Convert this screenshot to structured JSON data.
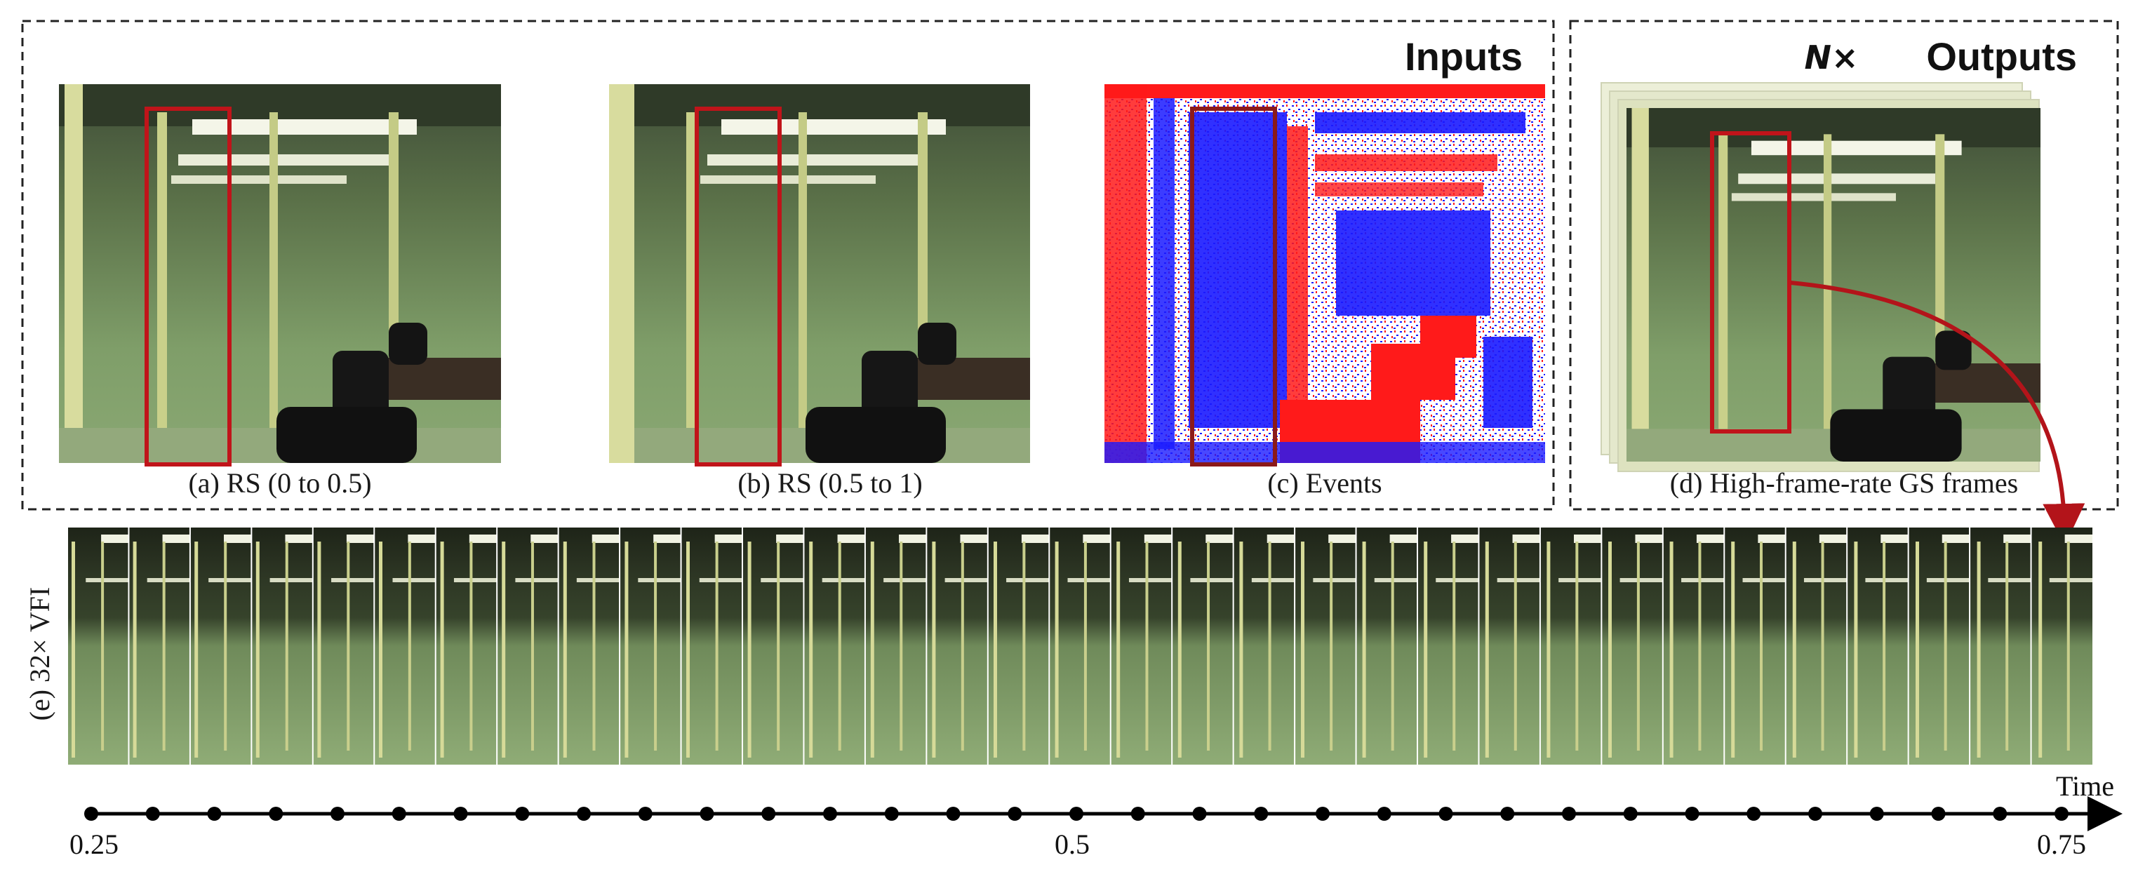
{
  "inputs_label": "Inputs",
  "outputs_label": "Outputs",
  "multiplier_label": "N×",
  "panels": {
    "a": "(a) RS (0 to 0.5)",
    "b": "(b) RS (0.5 to 1)",
    "c": "(c) Events",
    "d": "(d) High-frame-rate GS frames"
  },
  "strip_label": "(e) 32× VFI",
  "timeline": {
    "axis_label": "Time",
    "start_label": "0.25",
    "mid_label": "0.5",
    "end_label": "0.75",
    "start": 0.25,
    "end": 0.75,
    "tick_count": 33
  },
  "strip": {
    "frame_count": 33
  },
  "colors": {
    "highlight_box": "#c0141a",
    "events_positive": "#1a1aff",
    "events_negative": "#ff1a1a",
    "scene_green": "#6f8f5a",
    "arrow": "#b3141a"
  }
}
